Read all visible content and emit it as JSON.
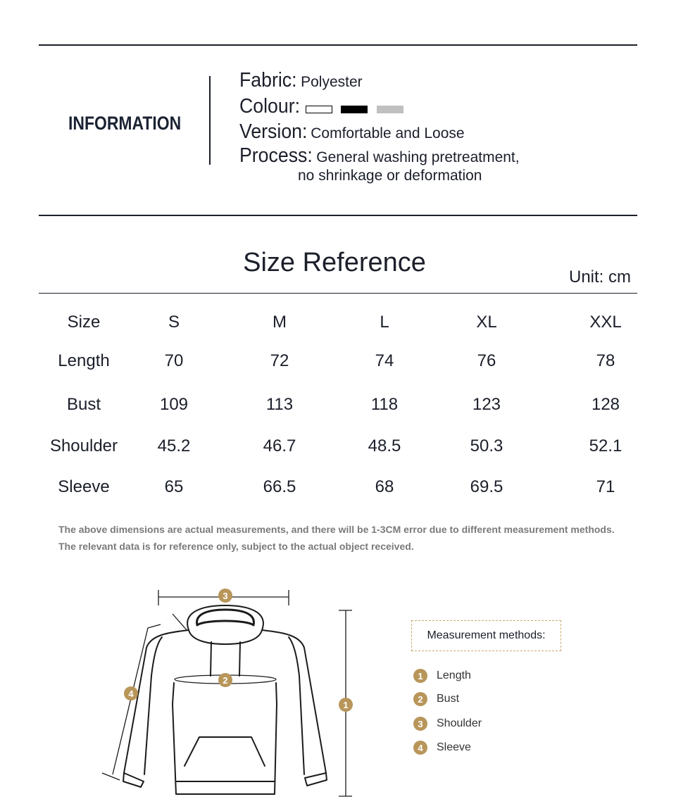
{
  "information": {
    "heading": "INFORMATION",
    "fabric": {
      "label": "Fabric:",
      "value": "Polyester"
    },
    "colour": {
      "label": "Colour:",
      "swatches": [
        "#ffffff",
        "#000000",
        "#c0c0c0"
      ]
    },
    "version": {
      "label": "Version:",
      "value": "Comfortable and Loose"
    },
    "process": {
      "label": "Process:",
      "value_line1": "General washing pretreatment,",
      "value_line2": "no shrinkage or deformation"
    }
  },
  "size_reference": {
    "title": "Size Reference",
    "unit": "Unit: cm",
    "rows": [
      {
        "label": "Size",
        "values": [
          "S",
          "M",
          "L",
          "XL",
          "XXL"
        ]
      },
      {
        "label": "Length",
        "values": [
          "70",
          "72",
          "74",
          "76",
          "78"
        ]
      },
      {
        "label": "Bust",
        "values": [
          "109",
          "113",
          "118",
          "123",
          "128"
        ]
      },
      {
        "label": "Shoulder",
        "values": [
          "45.2",
          "46.7",
          "48.5",
          "50.3",
          "52.1"
        ]
      },
      {
        "label": "Sleeve",
        "values": [
          "65",
          "66.5",
          "68",
          "69.5",
          "71"
        ]
      }
    ],
    "notes": [
      "The above dimensions are actual measurements, and there will be 1-3CM error due to different measurement methods.",
      "The relevant data is for reference only, subject to the actual object received."
    ]
  },
  "measurement": {
    "heading": "Measurement methods:",
    "accent_color": "#b8965a",
    "items": [
      {
        "number": "1",
        "label": "Length"
      },
      {
        "number": "2",
        "label": "Bust"
      },
      {
        "number": "3",
        "label": "Shoulder"
      },
      {
        "number": "4",
        "label": "Sleeve"
      }
    ]
  }
}
